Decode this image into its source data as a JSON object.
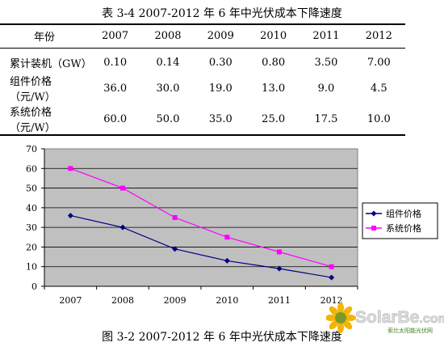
{
  "table": {
    "caption": "表 3-4    2007-2012 年 6 年中光伏成本下降速度",
    "header_label": "年份",
    "years": [
      "2007",
      "2008",
      "2009",
      "2010",
      "2011",
      "2012"
    ],
    "rows": [
      {
        "label": "累计装机（GW）",
        "values": [
          "0.10",
          "0.14",
          "0.30",
          "0.80",
          "3.50",
          "7.00"
        ]
      },
      {
        "label": "组件价格 （元/W）",
        "values": [
          "36.0",
          "30.0",
          "19.0",
          "13.0",
          "9.0",
          "4.5"
        ]
      },
      {
        "label": "系统价格 （元/W）",
        "values": [
          "60.0",
          "50.0",
          "35.0",
          "25.0",
          "17.5",
          "10.0"
        ]
      }
    ]
  },
  "chart_data": {
    "type": "line",
    "categories": [
      "2007",
      "2008",
      "2009",
      "2010",
      "2011",
      "2012"
    ],
    "series": [
      {
        "name": "组件价格",
        "values": [
          36,
          30,
          19,
          13,
          9,
          4.5
        ],
        "color": "#000080",
        "marker": "diamond"
      },
      {
        "name": "系统价格",
        "values": [
          60,
          50,
          35,
          25,
          17.5,
          10
        ],
        "color": "#ff00ff",
        "marker": "square"
      }
    ],
    "ylim": [
      0,
      70
    ],
    "yticks": [
      "0",
      "10",
      "20",
      "30",
      "40",
      "50",
      "60",
      "70"
    ],
    "plot_background": "#c0c0c0",
    "grid": true,
    "legend_position": "right",
    "xlabel": "",
    "ylabel": ""
  },
  "figure": {
    "caption": "图 3-2    2007-2012 年 6 年中光伏成本下降速度"
  },
  "watermark": {
    "brand": "SolarBe",
    "domain_suffix": ".com",
    "tagline": "索比太阳能光伏网"
  }
}
